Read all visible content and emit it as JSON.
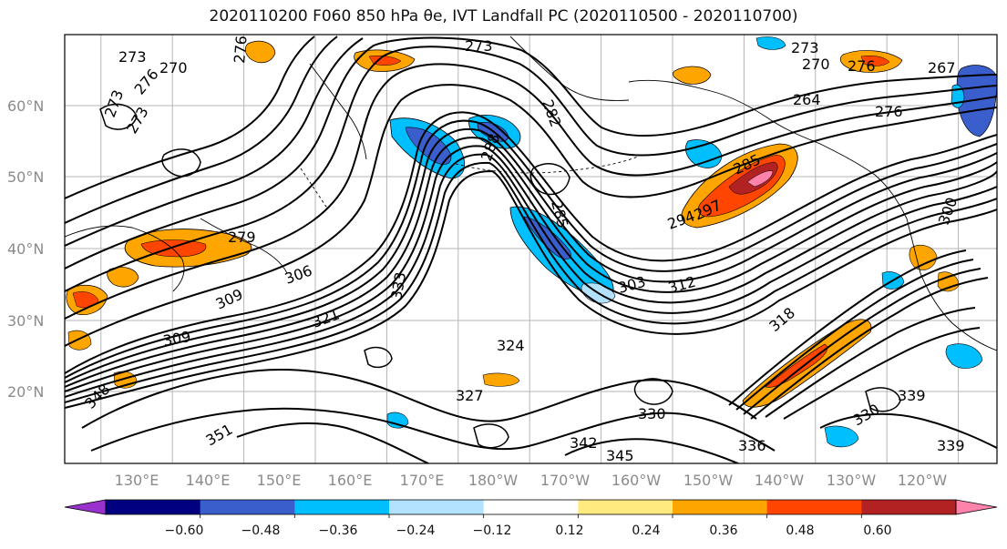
{
  "title": "2020110200 F060 850 hPa θe, IVT Landfall PC (2020110500 - 2020110700)",
  "lat_labels": [
    "60°N",
    "50°N",
    "40°N",
    "30°N",
    "20°N"
  ],
  "lon_labels": [
    "130°E",
    "140°E",
    "150°E",
    "160°E",
    "170°E",
    "180°W",
    "170°W",
    "160°W",
    "150°W",
    "140°W",
    "130°W",
    "120°W"
  ],
  "contour_labels": [
    "273",
    "273",
    "270",
    "273",
    "276",
    "273",
    "276",
    "270",
    "276",
    "282",
    "288",
    "285",
    "294",
    "297",
    "285",
    "303",
    "306",
    "309",
    "312",
    "318",
    "321",
    "324",
    "327",
    "330",
    "333",
    "336",
    "339",
    "342",
    "345",
    "348",
    "351",
    "273",
    "264",
    "267",
    "276",
    "279",
    "300",
    "309",
    "330",
    "339"
  ],
  "colorbar": {
    "colors": [
      "#9932cc",
      "#000080",
      "#3a5fcd",
      "#00bfff",
      "#b2e2ff",
      "#ffffff",
      "#ffea80",
      "#ffa500",
      "#ff4500",
      "#b22222",
      "#ff82ab"
    ],
    "tick_labels": [
      "−0.60",
      "−0.48",
      "−0.36",
      "−0.24",
      "−0.12",
      "0.12",
      "0.24",
      "0.36",
      "0.48",
      "0.60"
    ]
  }
}
